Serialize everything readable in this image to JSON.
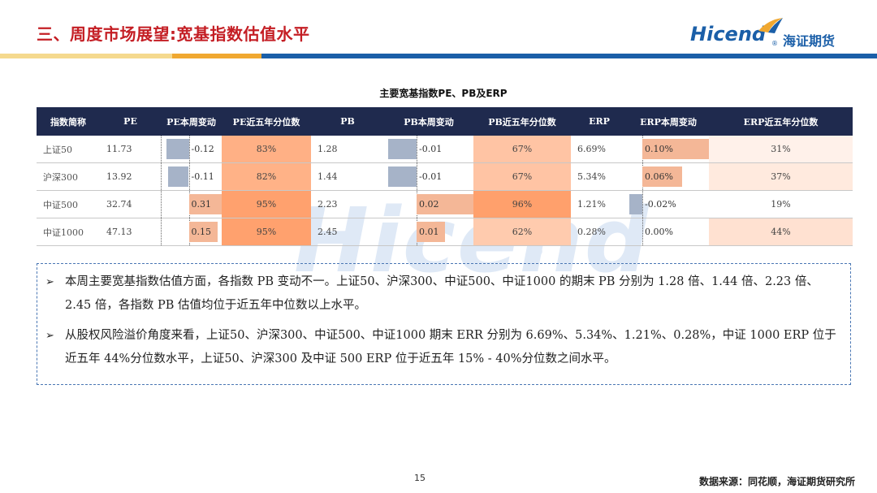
{
  "header": {
    "title": "三、周度市场展望:宽基指数估值水平",
    "logo_en": "Hicend",
    "logo_reg": "®",
    "logo_cn": "海证期货"
  },
  "watermark": {
    "text": "Hicend",
    "reg": "®"
  },
  "table": {
    "title": "主要宽基指数PE、PB及ERP",
    "headers": [
      "指数简称",
      "PE",
      "PE本周变动",
      "PE近五年分位数",
      "PB",
      "PB本周变动",
      "PB近五年分位数",
      "ERP",
      "ERP本周变动",
      "ERP近五年分位数"
    ],
    "rows": [
      {
        "name": "上证50",
        "pe": "11.73",
        "pe_chg": "-0.12",
        "pe_chg_val": -0.12,
        "pe_pct": "83%",
        "pe_pct_val": 83,
        "pb": "1.28",
        "pb_chg": "-0.01",
        "pb_chg_val": -0.01,
        "pb_pct": "67%",
        "pb_pct_val": 67,
        "erp": "6.69%",
        "erp_chg": "0.10%",
        "erp_chg_val": 0.1,
        "erp_pct": "31%",
        "erp_pct_val": 31
      },
      {
        "name": "沪深300",
        "pe": "13.92",
        "pe_chg": "-0.11",
        "pe_chg_val": -0.11,
        "pe_pct": "82%",
        "pe_pct_val": 82,
        "pb": "1.44",
        "pb_chg": "-0.01",
        "pb_chg_val": -0.01,
        "pb_pct": "67%",
        "pb_pct_val": 67,
        "erp": "5.34%",
        "erp_chg": "0.06%",
        "erp_chg_val": 0.06,
        "erp_pct": "37%",
        "erp_pct_val": 37
      },
      {
        "name": "中证500",
        "pe": "32.74",
        "pe_chg": "0.31",
        "pe_chg_val": 0.31,
        "pe_pct": "95%",
        "pe_pct_val": 95,
        "pb": "2.23",
        "pb_chg": "0.02",
        "pb_chg_val": 0.02,
        "pb_pct": "96%",
        "pb_pct_val": 96,
        "erp": "1.21%",
        "erp_chg": "-0.02%",
        "erp_chg_val": -0.02,
        "erp_pct": "19%",
        "erp_pct_val": 19
      },
      {
        "name": "中证1000",
        "pe": "47.13",
        "pe_chg": "0.15",
        "pe_chg_val": 0.15,
        "pe_pct": "95%",
        "pe_pct_val": 95,
        "pb": "2.45",
        "pb_chg": "0.01",
        "pb_chg_val": 0.01,
        "pb_pct": "62%",
        "pb_pct_val": 62,
        "erp": "0.28%",
        "erp_chg": "0.00%",
        "erp_chg_val": 0.0,
        "erp_pct": "44%",
        "erp_pct_val": 44
      }
    ]
  },
  "notes": [
    "本周主要宽基指数估值方面，各指数 PB 变动不一。上证50、沪深300、中证500、中证1000 的期末 PB 分别为 1.28 倍、1.44 倍、2.23 倍、2.45 倍，各指数 PB 估值均位于近五年中位数以上水平。",
    "从股权风险溢价角度来看，上证50、沪深300、中证500、中证1000 期末 ERR 分别为 6.69%、5.34%、1.21%、0.28%，中证 1000 ERP 位于近五年 44%分位数水平，上证50、沪深300 及中证 500 ERP 位于近五年 15% - 40%分位数之间水平。"
  ],
  "note_bullet": "➢",
  "footer": {
    "page": "15",
    "source": "数据来源：同花顺，海证期货研究所"
  },
  "colors": {
    "title_red": "#c41e24",
    "brand_blue": "#1b5fa8",
    "header_navy": "#1f2a4e",
    "bar_negative": "#a6b3c8",
    "bar_positive": "#f4b797",
    "heat_max": "#f0a57a"
  }
}
